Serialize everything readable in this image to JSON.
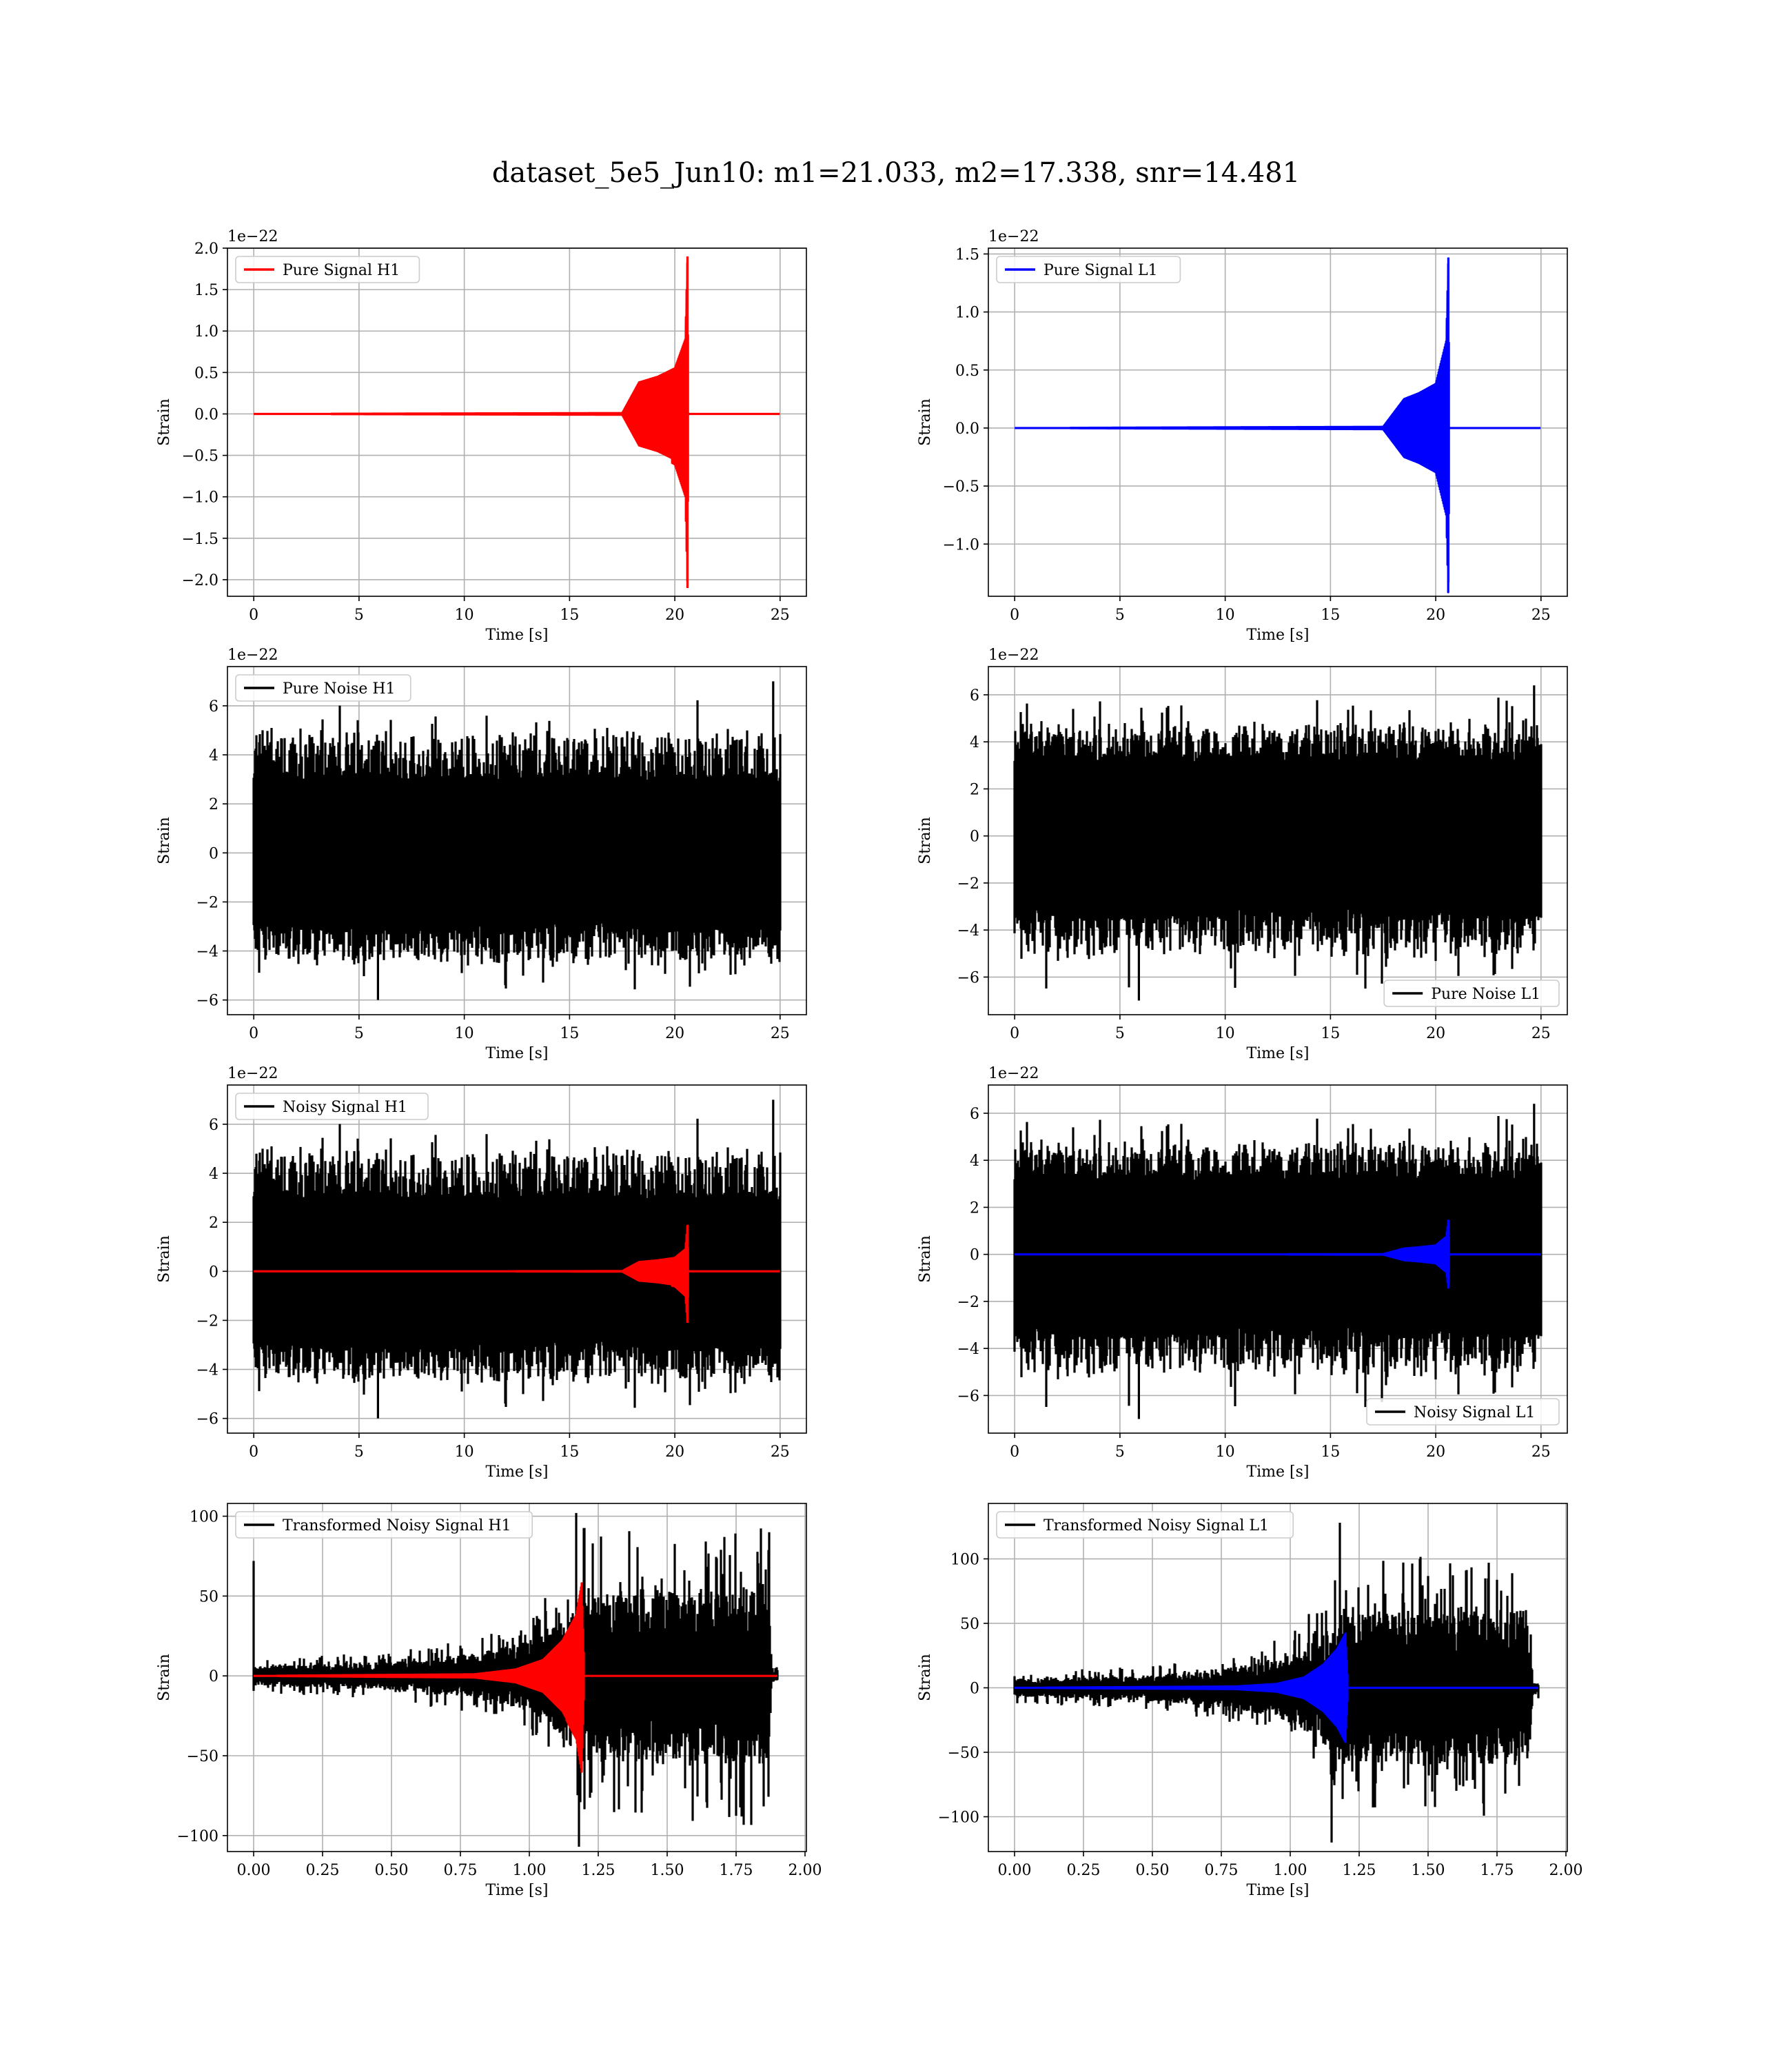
{
  "figure": {
    "title": "dataset_5e5_Jun10: m1=21.033, m2=17.338, snr=14.481"
  },
  "chart_data": [
    {
      "id": "pure-signal-h1",
      "type": "line",
      "xlabel": "Time [s]",
      "ylabel": "Strain",
      "offset_text": "1e−22",
      "xlim": [
        -1.25,
        26.25
      ],
      "ylim": [
        -2.2,
        2.0
      ],
      "xticks": [
        0,
        5,
        10,
        15,
        20,
        25
      ],
      "yticks": [
        -2.0,
        -1.5,
        -1.0,
        -0.5,
        0.0,
        0.5,
        1.0,
        1.5,
        2.0
      ],
      "ytick_labels": [
        "−2.0",
        "−1.5",
        "−1.0",
        "−0.5",
        "0.0",
        "0.5",
        "1.0",
        "1.5",
        "2.0"
      ],
      "legend": {
        "placement": "top-left"
      },
      "series": [
        {
          "name": "Pure Signal H1",
          "color": "#ff0000",
          "kind": "chirp",
          "x_range": [
            0,
            25
          ],
          "envelope": [
            [
              0,
              0
            ],
            [
              17.5,
              0.01
            ],
            [
              18.3,
              0.38
            ],
            [
              19.2,
              0.45
            ],
            [
              20.0,
              0.55
            ],
            [
              20.5,
              0.9
            ],
            [
              20.6,
              1.9
            ],
            [
              20.65,
              0
            ]
          ],
          "neg_peak": -2.1,
          "merger": 20.6
        }
      ]
    },
    {
      "id": "pure-signal-l1",
      "type": "line",
      "xlabel": "Time [s]",
      "ylabel": "Strain",
      "offset_text": "1e−22",
      "xlim": [
        -1.25,
        26.25
      ],
      "ylim": [
        -1.45,
        1.55
      ],
      "xticks": [
        0,
        5,
        10,
        15,
        20,
        25
      ],
      "yticks": [
        -1.0,
        -0.5,
        0.0,
        0.5,
        1.0,
        1.5
      ],
      "ytick_labels": [
        "−1.0",
        "−0.5",
        "0.0",
        "0.5",
        "1.0",
        "1.5"
      ],
      "legend": {
        "placement": "top-left"
      },
      "series": [
        {
          "name": "Pure Signal L1",
          "color": "#0000ff",
          "kind": "chirp",
          "x_range": [
            0,
            25
          ],
          "envelope": [
            [
              0,
              0
            ],
            [
              17.5,
              0.01
            ],
            [
              18.5,
              0.25
            ],
            [
              19.2,
              0.3
            ],
            [
              20.0,
              0.38
            ],
            [
              20.5,
              0.75
            ],
            [
              20.6,
              1.47
            ],
            [
              20.65,
              0
            ]
          ],
          "neg_peak": -1.33,
          "merger": 20.6
        }
      ]
    },
    {
      "id": "pure-noise-h1",
      "type": "line",
      "xlabel": "Time [s]",
      "ylabel": "Strain",
      "offset_text": "1e−22",
      "xlim": [
        -1.25,
        26.25
      ],
      "ylim": [
        -6.6,
        7.6
      ],
      "xticks": [
        0,
        5,
        10,
        15,
        20,
        25
      ],
      "yticks": [
        -6,
        -4,
        -2,
        0,
        2,
        4,
        6
      ],
      "ytick_labels": [
        "−6",
        "−4",
        "−2",
        "0",
        "2",
        "4",
        "6"
      ],
      "legend": {
        "placement": "top-left"
      },
      "series": [
        {
          "name": "Pure Noise H1",
          "color": "#000000",
          "kind": "noise",
          "x_range": [
            0,
            25
          ],
          "band": 3.3,
          "spike_range": [
            -6.0,
            7.0
          ],
          "seed": 11
        }
      ]
    },
    {
      "id": "pure-noise-l1",
      "type": "line",
      "xlabel": "Time [s]",
      "ylabel": "Strain",
      "offset_text": "1e−22",
      "xlim": [
        -1.25,
        26.25
      ],
      "ylim": [
        -7.6,
        7.2
      ],
      "xticks": [
        0,
        5,
        10,
        15,
        20,
        25
      ],
      "yticks": [
        -6,
        -4,
        -2,
        0,
        2,
        4,
        6
      ],
      "ytick_labels": [
        "−6",
        "−4",
        "−2",
        "0",
        "2",
        "4",
        "6"
      ],
      "legend": {
        "placement": "bottom-right"
      },
      "series": [
        {
          "name": "Pure Noise L1",
          "color": "#000000",
          "kind": "noise",
          "x_range": [
            0,
            25
          ],
          "band": 3.6,
          "spike_range": [
            -7.0,
            6.4
          ],
          "seed": 23
        }
      ]
    },
    {
      "id": "noisy-signal-h1",
      "type": "line",
      "xlabel": "Time [s]",
      "ylabel": "Strain",
      "offset_text": "1e−22",
      "xlim": [
        -1.25,
        26.25
      ],
      "ylim": [
        -6.6,
        7.6
      ],
      "xticks": [
        0,
        5,
        10,
        15,
        20,
        25
      ],
      "yticks": [
        -6,
        -4,
        -2,
        0,
        2,
        4,
        6
      ],
      "ytick_labels": [
        "−6",
        "−4",
        "−2",
        "0",
        "2",
        "4",
        "6"
      ],
      "legend": {
        "placement": "top-left"
      },
      "series": [
        {
          "name": "Noisy Signal H1",
          "color": "#000000",
          "kind": "noise",
          "x_range": [
            0,
            25
          ],
          "band": 3.3,
          "spike_range": [
            -6.0,
            7.0
          ],
          "seed": 11
        },
        {
          "name": "",
          "color": "#ff0000",
          "kind": "chirp",
          "x_range": [
            0,
            25
          ],
          "envelope": [
            [
              0,
              0
            ],
            [
              17.5,
              0.01
            ],
            [
              18.3,
              0.38
            ],
            [
              19.2,
              0.45
            ],
            [
              20.0,
              0.55
            ],
            [
              20.5,
              0.9
            ],
            [
              20.6,
              1.9
            ],
            [
              20.65,
              0
            ]
          ],
          "neg_peak": -2.1,
          "merger": 20.6
        }
      ]
    },
    {
      "id": "noisy-signal-l1",
      "type": "line",
      "xlabel": "Time [s]",
      "ylabel": "Strain",
      "offset_text": "1e−22",
      "xlim": [
        -1.25,
        26.25
      ],
      "ylim": [
        -7.6,
        7.2
      ],
      "xticks": [
        0,
        5,
        10,
        15,
        20,
        25
      ],
      "yticks": [
        -6,
        -4,
        -2,
        0,
        2,
        4,
        6
      ],
      "ytick_labels": [
        "−6",
        "−4",
        "−2",
        "0",
        "2",
        "4",
        "6"
      ],
      "legend": {
        "placement": "bottom-right"
      },
      "series": [
        {
          "name": "Noisy Signal L1",
          "color": "#000000",
          "kind": "noise",
          "x_range": [
            0,
            25
          ],
          "band": 3.6,
          "spike_range": [
            -7.0,
            6.4
          ],
          "seed": 23
        },
        {
          "name": "",
          "color": "#0000ff",
          "kind": "chirp",
          "x_range": [
            0,
            25
          ],
          "envelope": [
            [
              0,
              0
            ],
            [
              17.5,
              0.01
            ],
            [
              18.5,
              0.25
            ],
            [
              19.2,
              0.3
            ],
            [
              20.0,
              0.38
            ],
            [
              20.5,
              0.75
            ],
            [
              20.6,
              1.47
            ],
            [
              20.65,
              0
            ]
          ],
          "neg_peak": -1.33,
          "merger": 20.6
        }
      ]
    },
    {
      "id": "transformed-noisy-signal-h1",
      "type": "line",
      "xlabel": "Time [s]",
      "ylabel": "Strain",
      "offset_text": "",
      "xlim": [
        -0.095,
        2.005
      ],
      "ylim": [
        -110,
        108
      ],
      "xticks": [
        0.0,
        0.25,
        0.5,
        0.75,
        1.0,
        1.25,
        1.5,
        1.75,
        2.0
      ],
      "xtick_labels": [
        "0.00",
        "0.25",
        "0.50",
        "0.75",
        "1.00",
        "1.25",
        "1.50",
        "1.75",
        "2.00"
      ],
      "yticks": [
        -100,
        -50,
        0,
        50,
        100
      ],
      "ytick_labels": [
        "−100",
        "−50",
        "0",
        "50",
        "100"
      ],
      "legend": {
        "placement": "top-left"
      },
      "series": [
        {
          "name": "Transformed Noisy Signal H1",
          "color": "#000000",
          "kind": "whitened",
          "x_range": [
            0,
            1.9
          ],
          "growth": [
            [
              0,
              6
            ],
            [
              0.5,
              9
            ],
            [
              0.8,
              14
            ],
            [
              1.0,
              22
            ],
            [
              1.1,
              35
            ],
            [
              1.2,
              55
            ],
            [
              1.87,
              55
            ],
            [
              1.88,
              4
            ],
            [
              1.9,
              4
            ]
          ],
          "spikes": [
            [
              0.0,
              72
            ],
            [
              1.17,
              102
            ],
            [
              1.18,
              -107
            ],
            [
              1.87,
              90
            ]
          ],
          "seed": 31
        },
        {
          "name": "",
          "color": "#ff0000",
          "kind": "chirp",
          "x_range": [
            0,
            1.9
          ],
          "envelope": [
            [
              0,
              0
            ],
            [
              0.8,
              1
            ],
            [
              0.95,
              4
            ],
            [
              1.05,
              10
            ],
            [
              1.12,
              22
            ],
            [
              1.17,
              38
            ],
            [
              1.19,
              58
            ],
            [
              1.2,
              0
            ]
          ],
          "neg_peak": -60,
          "merger": 1.19
        }
      ]
    },
    {
      "id": "transformed-noisy-signal-l1",
      "type": "line",
      "xlabel": "Time [s]",
      "ylabel": "Strain",
      "offset_text": "",
      "xlim": [
        -0.095,
        2.005
      ],
      "ylim": [
        -127,
        143
      ],
      "xticks": [
        0.0,
        0.25,
        0.5,
        0.75,
        1.0,
        1.25,
        1.5,
        1.75,
        2.0
      ],
      "xtick_labels": [
        "0.00",
        "0.25",
        "0.50",
        "0.75",
        "1.00",
        "1.25",
        "1.50",
        "1.75",
        "2.00"
      ],
      "yticks": [
        -100,
        -50,
        0,
        50,
        100
      ],
      "ytick_labels": [
        "−100",
        "−50",
        "0",
        "50",
        "100"
      ],
      "legend": {
        "placement": "top-left"
      },
      "series": [
        {
          "name": "Transformed Noisy Signal L1",
          "color": "#000000",
          "kind": "whitened",
          "x_range": [
            0,
            1.9
          ],
          "growth": [
            [
              0,
              7
            ],
            [
              0.5,
              10
            ],
            [
              0.8,
              16
            ],
            [
              1.0,
              26
            ],
            [
              1.1,
              40
            ],
            [
              1.2,
              60
            ],
            [
              1.87,
              60
            ],
            [
              1.88,
              5
            ],
            [
              1.9,
              5
            ]
          ],
          "spikes": [
            [
              1.18,
              128
            ],
            [
              1.15,
              -120
            ],
            [
              1.72,
              97
            ],
            [
              1.78,
              -82
            ]
          ],
          "seed": 47
        },
        {
          "name": "",
          "color": "#0000ff",
          "kind": "chirp",
          "x_range": [
            0,
            1.9
          ],
          "envelope": [
            [
              0,
              0
            ],
            [
              0.8,
              1
            ],
            [
              0.95,
              3
            ],
            [
              1.05,
              8
            ],
            [
              1.12,
              18
            ],
            [
              1.17,
              30
            ],
            [
              1.2,
              42
            ],
            [
              1.21,
              0
            ]
          ],
          "neg_peak": -38,
          "merger": 1.2
        }
      ]
    }
  ]
}
